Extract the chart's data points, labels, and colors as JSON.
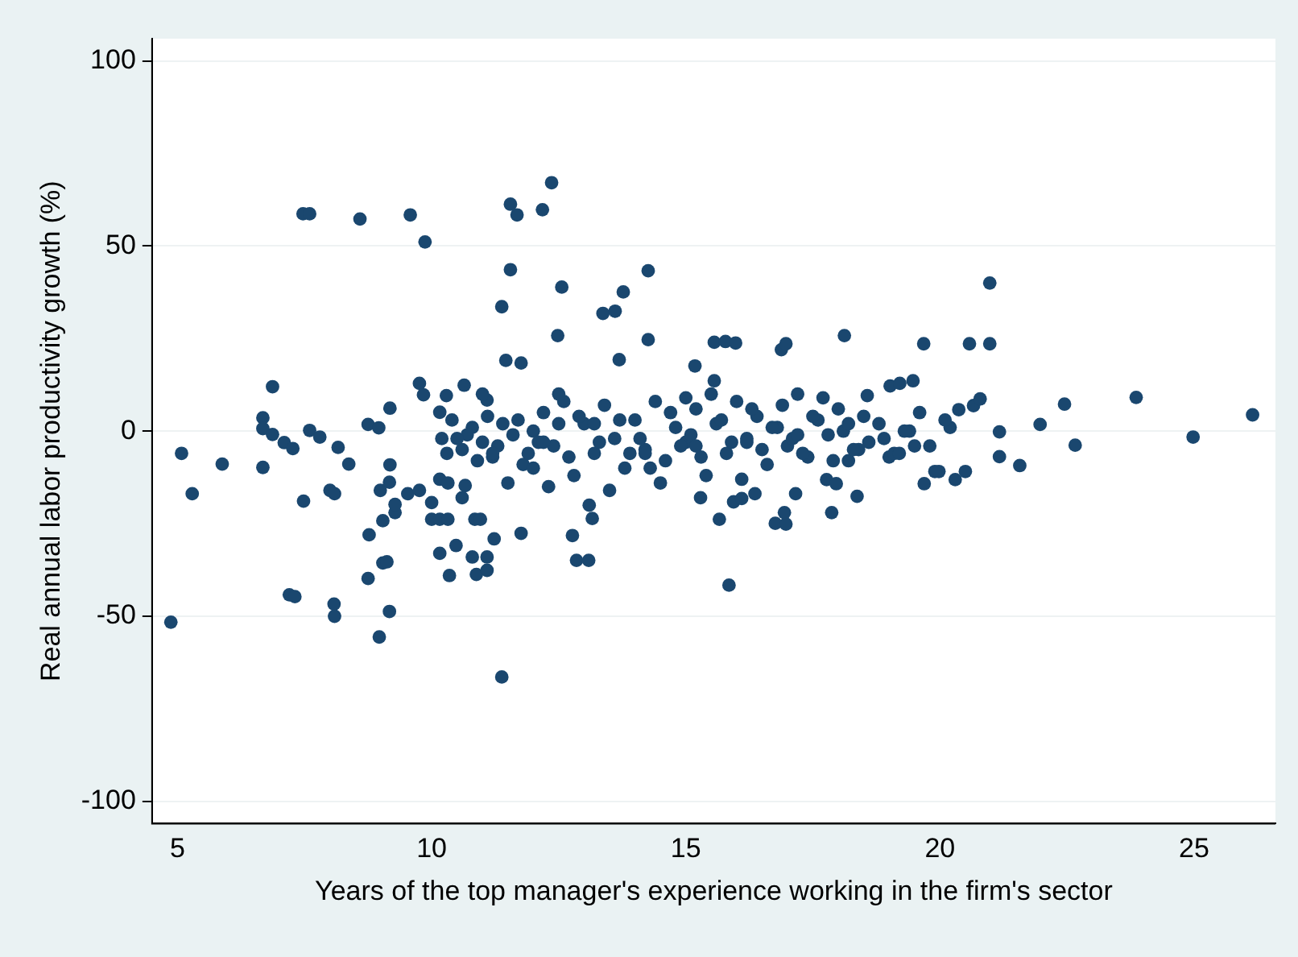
{
  "chart_data": {
    "type": "scatter",
    "xlabel": "Years of the top manager's experience working in the firm's sector",
    "ylabel": "Real annual labor productivity growth (%)",
    "xlim": [
      4.5,
      26.6
    ],
    "ylim": [
      -106,
      106
    ],
    "xticks": [
      5,
      10,
      15,
      20,
      25
    ],
    "yticks": [
      -100,
      -50,
      0,
      50,
      100
    ],
    "grid": "y",
    "marker": "circle",
    "legend": false,
    "series": [
      {
        "color": "#1a476f",
        "x": [
          4.87,
          5.08,
          5.29,
          5.88,
          6.68,
          6.68,
          6.68,
          6.87,
          6.87,
          7.1,
          7.27,
          7.2,
          7.31,
          7.47,
          7.6,
          7.48,
          7.6,
          7.8,
          8.0,
          8.09,
          8.08,
          8.09,
          8.16,
          8.37,
          8.59,
          8.77,
          8.75,
          8.75,
          8.96,
          8.97,
          8.99,
          9.04,
          9.12,
          9.04,
          9.17,
          9.18,
          9.18,
          9.17,
          9.28,
          9.28,
          9.58,
          9.87,
          9.76,
          9.84,
          9.53,
          9.76,
          10,
          10,
          10.16,
          10.32,
          10.16,
          10.35,
          10.48,
          10.16,
          10.32,
          10.29,
          10.16,
          10.64,
          10.66,
          10.85,
          10.96,
          10.8,
          10.88,
          11.09,
          11.09,
          11.23,
          11.09,
          11.38,
          11.38,
          11.46,
          11.55,
          11.68,
          11.55,
          11.76,
          11.76,
          12.18,
          12.36,
          12.48,
          12.56,
          12.77,
          12.85,
          13.09,
          13.16,
          13.37,
          13.61,
          13.77,
          13.69,
          14.26,
          14.26,
          15.18,
          15.56,
          15.78,
          15.98,
          15.56,
          15.66,
          15.85,
          15.29,
          15.94,
          16.1,
          16.36,
          16.76,
          16.97,
          16.94,
          16.88,
          16.97,
          17.16,
          17.87,
          17.77,
          17.96,
          18.12,
          18.37,
          18.57,
          19.02,
          19.21,
          19.47,
          19.68,
          19.69,
          19.9,
          19.98,
          20.3,
          20.5,
          20.37,
          20.58,
          20.66,
          20.79,
          20.98,
          20.98,
          21.17,
          21.17,
          21.57,
          21.97,
          22.45,
          22.66,
          23.86,
          24.98,
          26.15,
          10.2,
          10.4,
          10.6,
          10.8,
          11,
          11.2,
          11.4,
          11.6,
          11.8,
          12,
          12.2,
          12.4,
          12.6,
          12.8,
          13,
          13.2,
          13.4,
          13.6,
          13.8,
          14,
          14.2,
          14.4,
          14.6,
          14.8,
          15,
          15.2,
          15.4,
          15.6,
          15.8,
          16,
          16.2,
          16.4,
          16.6,
          16.8,
          17,
          17.2,
          17.4,
          17.6,
          17.8,
          18,
          18.2,
          18.6,
          18.8,
          19,
          19.4,
          19.8,
          20.2,
          12.3,
          13.5,
          14.5,
          11.5,
          10.6,
          10.9,
          12.5,
          14.3,
          15.5,
          16.9,
          17.7,
          18.4,
          19.6,
          13.1,
          12,
          16.1,
          15,
          11,
          10.3,
          10.7,
          11.1,
          11.3,
          11.7,
          11.9,
          12.1,
          12.5,
          12.7,
          12.9,
          13.3,
          13.7,
          13.9,
          14.1,
          14.7,
          14.9,
          15.1,
          15.3,
          15.7,
          15.9,
          16.3,
          16.5,
          16.7,
          17.1,
          17.3,
          17.5,
          17.9,
          18.1,
          18.3,
          18.5,
          18.9,
          19.1,
          19.3,
          19.5,
          20.1,
          10.5,
          11.2,
          12.2,
          13.2,
          14.2,
          15.2,
          16.2,
          17.2,
          18.2,
          19.2
        ],
        "values": [
          -51.6,
          -6,
          -16.9,
          -8.9,
          3.6,
          0.7,
          -9.8,
          12,
          -0.9,
          -3.1,
          -4.7,
          -44.2,
          -44.7,
          58.7,
          58.7,
          -18.9,
          0.2,
          -1.6,
          -16,
          -16.9,
          -46.7,
          -50,
          -4.4,
          -8.9,
          57.3,
          -28,
          -39.8,
          1.8,
          0.9,
          -55.6,
          -16,
          -35.6,
          -35.3,
          -24.2,
          -13.8,
          -9.1,
          6.2,
          -48.7,
          -22,
          -19.8,
          58.4,
          51.1,
          12.9,
          9.8,
          -16.9,
          -16,
          -19.3,
          -23.8,
          -23.8,
          -23.8,
          -33,
          -39,
          -30.9,
          -13,
          -14,
          9.6,
          5.1,
          12.4,
          -14.7,
          -23.8,
          -23.8,
          -34,
          -38.7,
          -34,
          -37.6,
          -29.1,
          8.4,
          -66.4,
          33.6,
          19.1,
          61.3,
          58.4,
          43.6,
          18.4,
          -27.6,
          59.8,
          67.1,
          25.8,
          38.9,
          -28.2,
          -34.9,
          -34.9,
          -23.6,
          31.8,
          32.4,
          37.6,
          19.3,
          43.3,
          24.7,
          17.6,
          24,
          24.2,
          23.8,
          13.6,
          -23.8,
          -41.6,
          -18,
          -19.1,
          -18.2,
          -16.9,
          -24.9,
          -25.1,
          -22,
          22,
          23.6,
          -16.9,
          -22,
          -13.1,
          -14.2,
          25.8,
          -17.6,
          9.6,
          12.2,
          12.9,
          13.6,
          23.6,
          -14.2,
          -10.9,
          -10.9,
          -13.1,
          -10.9,
          5.8,
          23.6,
          6.9,
          8.7,
          40,
          23.6,
          -0.2,
          -6.9,
          -9.3,
          1.8,
          7.3,
          -3.8,
          9.1,
          -1.6,
          4.4,
          -2,
          3,
          -5,
          1,
          -3,
          -7,
          2,
          -1,
          -9,
          0,
          5,
          -4,
          8,
          -12,
          2,
          -6,
          7,
          -2,
          -10,
          3,
          -5,
          8,
          -8,
          1,
          -3,
          6,
          -12,
          2,
          -6,
          8,
          -2,
          4,
          -9,
          1,
          -4,
          10,
          -7,
          3,
          -1,
          6,
          -8,
          -3,
          2,
          -7,
          0,
          -4,
          1,
          -15,
          -16,
          -14,
          -14,
          -18,
          -8,
          10,
          -10,
          10,
          7,
          9,
          -5,
          5,
          -20,
          -10,
          -13,
          9,
          10,
          -6,
          -1,
          4,
          -4,
          3,
          -6,
          -3,
          2,
          -7,
          4,
          -3,
          3,
          -6,
          -2,
          5,
          -4,
          -1,
          -7,
          3,
          -3,
          6,
          -5,
          1,
          -2,
          -6,
          4,
          -8,
          0,
          -5,
          4,
          -2,
          -6,
          0,
          -4,
          3,
          -2,
          -6,
          -3,
          2,
          -6,
          -4,
          -3,
          -1,
          2,
          -6
        ]
      }
    ]
  }
}
